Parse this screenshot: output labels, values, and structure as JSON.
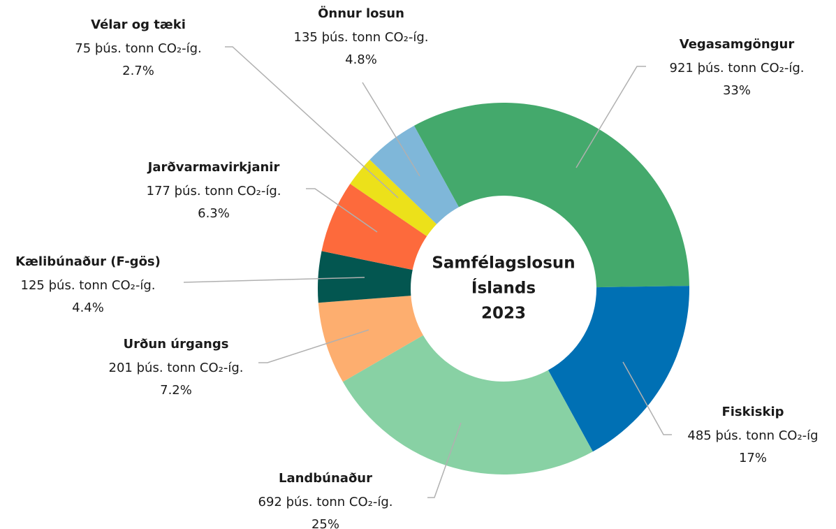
{
  "chart_data": {
    "type": "donut",
    "center_label": [
      "Samfélagslosun",
      "Íslands",
      "2023"
    ],
    "categories": [
      "Vegasamgöngur",
      "Fiskiskip",
      "Landbúnaður",
      "Urðun úrgangs",
      "Kælibúnaður (F-gös)",
      "Jarðvarmavirkjanir",
      "Vélar og tæki",
      "Önnur losun"
    ],
    "values": [
      921,
      485,
      692,
      201,
      125,
      177,
      75,
      135
    ],
    "value_labels": [
      "921 þús. tonn CO₂-íg.",
      "485 þús. tonn CO₂-íg",
      "692 þús. tonn CO₂-íg.",
      "201 þús. tonn CO₂-íg.",
      "125 þús. tonn CO₂-íg.",
      "177 þús. tonn CO₂-íg.",
      "75 þús. tonn CO₂-íg.",
      "135 þús. tonn CO₂-íg."
    ],
    "percents": [
      33,
      17,
      25,
      7.2,
      4.4,
      6.3,
      2.7,
      4.8
    ],
    "percent_labels": [
      "33%",
      "17%",
      "25%",
      "7.2%",
      "4.4%",
      "6.3%",
      "2.7%",
      "4.8%"
    ],
    "colors": [
      "#44a96c",
      "#0070b4",
      "#88d1a4",
      "#fdae6f",
      "#035650",
      "#fd6a3c",
      "#ece11a",
      "#7fb7d9"
    ]
  }
}
